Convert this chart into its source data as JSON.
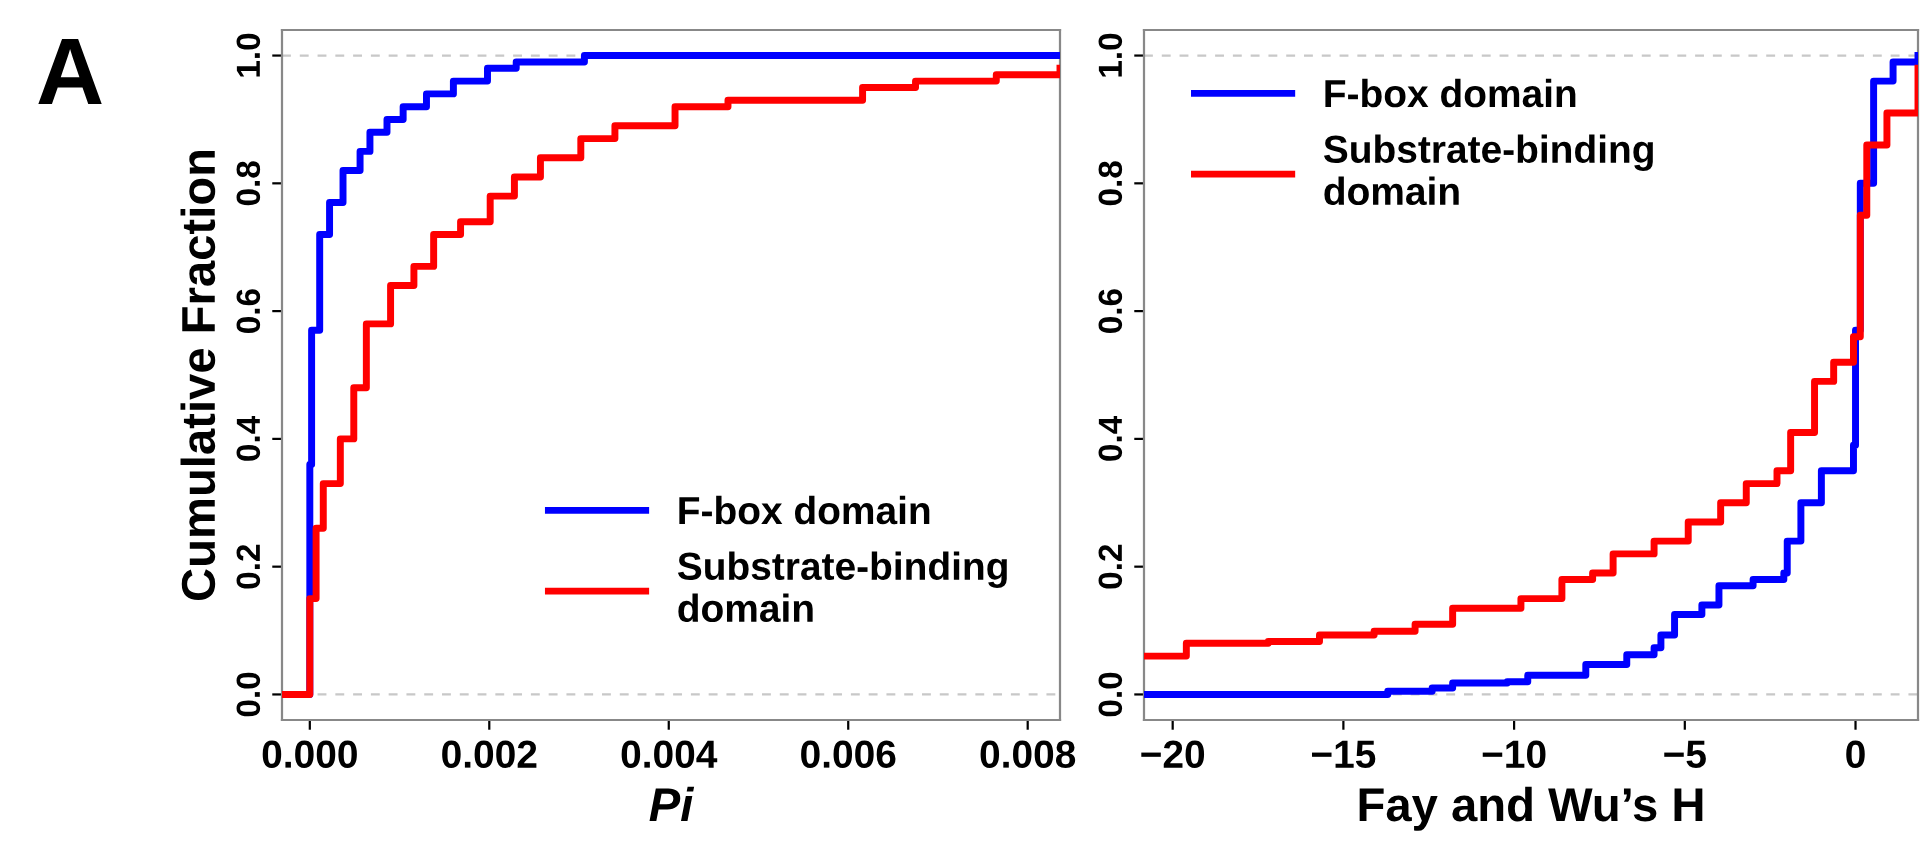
{
  "chart_data": [
    {
      "type": "step",
      "xlabel": "Pi",
      "ylabel": "Cumulative Fraction",
      "annotations": [
        "A"
      ],
      "legend": "bottom right",
      "grid": false,
      "xlim": [
        -0.00031,
        0.00836
      ],
      "ylim": [
        -0.04,
        1.04
      ],
      "xticks": [
        {
          "value": 0,
          "label": "0.000"
        },
        {
          "value": 0.002,
          "label": "0.002"
        },
        {
          "value": 0.004,
          "label": "0.004"
        },
        {
          "value": 0.006,
          "label": "0.006"
        },
        {
          "value": 0.008,
          "label": "0.008"
        }
      ],
      "yticks": [
        {
          "value": 0,
          "label": "0.0"
        },
        {
          "value": 0.2,
          "label": "0.2"
        },
        {
          "value": 0.4,
          "label": "0.4"
        },
        {
          "value": 0.6,
          "label": "0.6"
        },
        {
          "value": 0.8,
          "label": "0.8"
        },
        {
          "value": 1,
          "label": "1.0"
        }
      ],
      "ref_lines": [
        {
          "axis": "y",
          "value": 0,
          "color": "#c8c8c8",
          "line_style": "dashed"
        },
        {
          "axis": "y",
          "value": 1,
          "color": "#c8c8c8",
          "line_style": "dashed"
        }
      ],
      "series": [
        {
          "name": "F-box domain",
          "color": "#0000ff",
          "x": [
            -0.00031,
            0,
            0,
            2e-05,
            0.00011,
            0.00022,
            0.00037,
            0.00056,
            0.00067,
            0.00086,
            0.00104,
            0.0013,
            0.0016,
            0.00198,
            0.0023,
            0.00272,
            0.00306,
            0.00836
          ],
          "values": [
            0,
            0,
            0.36,
            0.57,
            0.72,
            0.77,
            0.82,
            0.85,
            0.88,
            0.9,
            0.92,
            0.94,
            0.96,
            0.98,
            0.99,
            0.99,
            1.0,
            1.0
          ]
        },
        {
          "name": "Substrate-binding\ndomain",
          "color": "#ff0000",
          "x": [
            -0.00031,
            0,
            0,
            7e-05,
            0.00015,
            0.00034,
            0.00049,
            0.00063,
            0.0009,
            0.00116,
            0.00138,
            0.00168,
            0.00201,
            0.00228,
            0.00257,
            0.00302,
            0.0034,
            0.00407,
            0.00466,
            0.00563,
            0.00616,
            0.00675,
            0.00765,
            0.00836
          ],
          "values": [
            0,
            0,
            0.15,
            0.26,
            0.33,
            0.4,
            0.48,
            0.58,
            0.64,
            0.67,
            0.72,
            0.74,
            0.78,
            0.81,
            0.84,
            0.87,
            0.89,
            0.92,
            0.93,
            0.93,
            0.95,
            0.96,
            0.97,
            0.98
          ]
        }
      ]
    },
    {
      "type": "step",
      "xlabel": "Fay and Wu’s H",
      "legend": "top left",
      "grid": false,
      "xlim": [
        -20.84,
        1.83
      ],
      "ylim": [
        -0.04,
        1.04
      ],
      "xticks": [
        {
          "value": -20,
          "label": "−20"
        },
        {
          "value": -15,
          "label": "−15"
        },
        {
          "value": -10,
          "label": "−10"
        },
        {
          "value": -5,
          "label": "−5"
        },
        0
      ],
      "yticks": [
        {
          "value": 0,
          "label": "0.0"
        },
        {
          "value": 0.2,
          "label": "0.2"
        },
        {
          "value": 0.4,
          "label": "0.4"
        },
        {
          "value": 0.6,
          "label": "0.6"
        },
        {
          "value": 0.8,
          "label": "0.8"
        },
        {
          "value": 1,
          "label": "1.0"
        }
      ],
      "ref_lines": [
        {
          "axis": "y",
          "value": 0,
          "color": "#c8c8c8",
          "line_style": "dashed"
        },
        {
          "axis": "y",
          "value": 1,
          "color": "#c8c8c8",
          "line_style": "dashed"
        }
      ],
      "series": [
        {
          "name": "F-box domain",
          "color": "#0000ff",
          "x": [
            -20.84,
            -13.8,
            -13.7,
            -12.4,
            -11.8,
            -10.2,
            -9.6,
            -7.9,
            -6.7,
            -5.9,
            -5.7,
            -5.3,
            -4.5,
            -4.0,
            -3.0,
            -2.1,
            -2.0,
            -1.6,
            -1.0,
            -0.35,
            -0.06,
            0,
            0.14,
            0.53,
            1.1,
            1.7,
            1.83
          ],
          "values": [
            0,
            0,
            0.005,
            0.01,
            0.018,
            0.02,
            0.03,
            0.047,
            0.062,
            0.073,
            0.093,
            0.125,
            0.14,
            0.17,
            0.18,
            0.19,
            0.24,
            0.3,
            0.35,
            0.35,
            0.39,
            0.57,
            0.8,
            0.96,
            0.99,
            0.99,
            1.0
          ]
        },
        {
          "name": "Substrate-binding\ndomain",
          "color": "#ff0000",
          "x": [
            -20.84,
            -19.6,
            -17.2,
            -15.7,
            -14.1,
            -12.9,
            -11.8,
            -9.8,
            -8.6,
            -7.7,
            -7.1,
            -5.9,
            -4.9,
            -3.95,
            -3.2,
            -2.3,
            -1.9,
            -1.2,
            -0.64,
            -0.06,
            0.14,
            0.33,
            0.92,
            1.83
          ],
          "values": [
            0.06,
            0.08,
            0.083,
            0.093,
            0.099,
            0.11,
            0.135,
            0.15,
            0.18,
            0.19,
            0.22,
            0.24,
            0.27,
            0.3,
            0.33,
            0.35,
            0.41,
            0.49,
            0.52,
            0.56,
            0.75,
            0.86,
            0.91,
            0.98
          ]
        }
      ]
    }
  ]
}
